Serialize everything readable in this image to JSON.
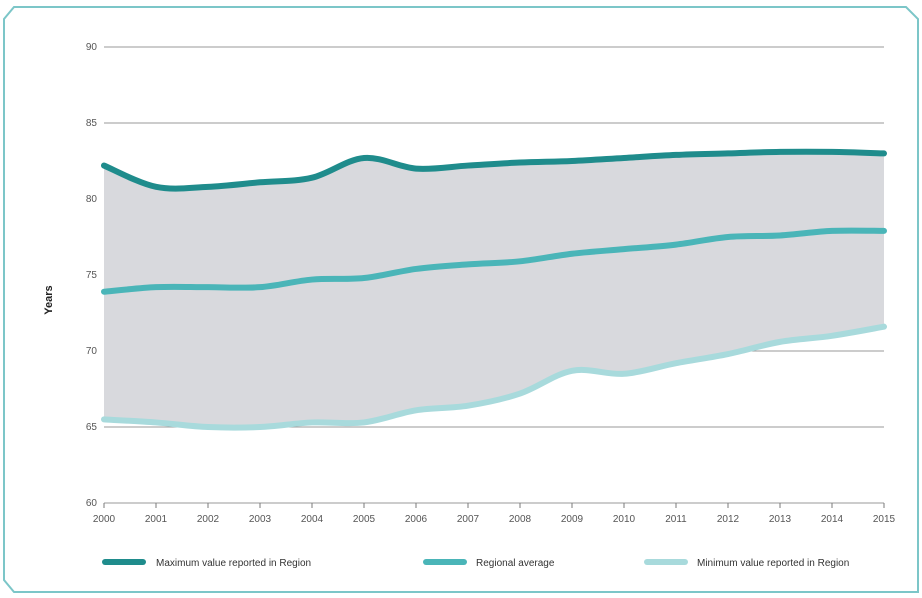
{
  "chart_data": {
    "type": "area",
    "title": "",
    "xlabel": "",
    "ylabel": "Years",
    "ylim": [
      60,
      90
    ],
    "yticks": [
      60,
      65,
      70,
      75,
      80,
      85,
      90
    ],
    "x": [
      "2000",
      "2001",
      "2002",
      "2003",
      "2004",
      "2005",
      "2006",
      "2007",
      "2008",
      "2009",
      "2010",
      "2011",
      "2012",
      "2013",
      "2014",
      "2015"
    ],
    "grid": true,
    "legend_position": "bottom",
    "shaded_band_color": "#d8d9dd",
    "series": [
      {
        "name": "Maximum value reported in Region",
        "color": "#1f8c8c",
        "values": [
          82.2,
          80.8,
          80.8,
          81.1,
          81.4,
          82.7,
          82.0,
          82.2,
          82.4,
          82.5,
          82.7,
          82.9,
          83.0,
          83.1,
          83.1,
          83.0
        ]
      },
      {
        "name": "Regional average",
        "color": "#4ab5b8",
        "values": [
          73.9,
          74.2,
          74.2,
          74.2,
          74.7,
          74.8,
          75.4,
          75.7,
          75.9,
          76.4,
          76.7,
          77.0,
          77.5,
          77.6,
          77.9,
          77.9
        ]
      },
      {
        "name": "Minimum value reported in Region",
        "color": "#a8dadc",
        "values": [
          65.5,
          65.3,
          65.0,
          65.0,
          65.3,
          65.3,
          66.1,
          66.4,
          67.2,
          68.7,
          68.5,
          69.2,
          69.8,
          70.6,
          71.0,
          71.6
        ]
      }
    ]
  }
}
